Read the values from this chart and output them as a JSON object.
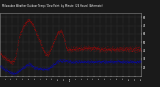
{
  "title": "Milwaukee Weather Outdoor Temp / Dew Point  by Minute  (24 Hours) (Alternate)",
  "bg_color": "#1a1a1a",
  "plot_bg_color": "#1a1a1a",
  "grid_color": "#555555",
  "temp_color": "#ff0000",
  "dew_color": "#0000ff",
  "ylim": [
    10,
    85
  ],
  "xlim": [
    0,
    1440
  ],
  "ytick_labels": [
    "80",
    "70",
    "60",
    "50",
    "40",
    "30",
    "20"
  ],
  "ytick_values": [
    80,
    70,
    60,
    50,
    40,
    30,
    20
  ],
  "hour_labels": [
    "12a",
    "1",
    "2",
    "3",
    "4",
    "5",
    "6",
    "7",
    "8",
    "9",
    "10",
    "11",
    "12p",
    "1",
    "2",
    "3",
    "4",
    "5",
    "6",
    "7",
    "8",
    "9",
    "10",
    "11",
    "12"
  ],
  "temp_data": [
    38,
    37,
    37,
    36,
    36,
    35,
    35,
    34,
    34,
    33,
    33,
    33,
    32,
    32,
    31,
    31,
    31,
    30,
    30,
    30,
    29,
    29,
    29,
    29,
    28,
    28,
    28,
    28,
    28,
    27,
    27,
    27,
    27,
    27,
    27,
    27,
    27,
    27,
    28,
    28,
    29,
    30,
    31,
    33,
    35,
    37,
    39,
    41,
    43,
    46,
    48,
    50,
    52,
    54,
    56,
    57,
    59,
    60,
    62,
    63,
    64,
    65,
    66,
    67,
    68,
    69,
    70,
    70,
    71,
    72,
    72,
    73,
    73,
    74,
    74,
    75,
    75,
    75,
    76,
    76,
    76,
    76,
    76,
    76,
    76,
    75,
    75,
    75,
    74,
    74,
    73,
    72,
    72,
    71,
    70,
    69,
    68,
    67,
    66,
    65,
    64,
    63,
    62,
    61,
    60,
    59,
    58,
    57,
    56,
    55,
    54,
    53,
    52,
    51,
    50,
    49,
    48,
    47,
    46,
    45,
    44,
    43,
    42,
    41,
    40,
    39,
    38,
    38,
    37,
    37,
    37,
    36,
    36,
    36,
    36,
    36,
    37,
    37,
    38,
    38,
    39,
    40,
    41,
    42,
    43,
    44,
    45,
    46,
    47,
    48,
    49,
    50,
    51,
    52,
    53,
    54,
    55,
    56,
    57,
    58,
    59,
    60,
    60,
    61,
    62,
    62,
    63,
    63,
    63,
    63,
    63,
    63,
    63,
    63,
    62,
    62,
    61,
    60,
    59,
    58,
    56,
    55,
    53,
    51,
    49,
    47,
    46,
    45,
    44,
    43,
    42,
    42,
    41,
    41,
    41,
    41,
    41,
    41,
    42,
    42,
    42,
    42,
    42,
    42,
    42,
    42,
    42,
    42,
    42,
    42,
    42,
    42,
    42,
    42,
    42,
    43,
    43,
    43,
    43,
    43,
    43,
    43,
    43,
    43,
    43,
    43,
    43,
    43,
    43,
    43,
    43,
    43,
    43,
    43,
    43,
    43,
    43,
    43,
    43,
    43,
    43,
    43,
    43,
    43,
    43,
    43,
    43,
    43,
    43,
    43,
    43,
    43,
    43,
    43,
    43,
    43,
    43,
    43,
    43,
    43,
    43,
    43,
    43,
    43,
    43,
    43,
    43,
    43,
    43,
    43,
    43,
    43,
    43,
    43,
    43,
    43,
    43,
    43,
    43,
    43,
    43,
    42,
    42,
    42,
    42,
    42,
    42,
    42,
    42,
    42,
    42,
    42,
    42,
    42,
    42,
    42,
    42,
    42,
    42,
    42,
    42,
    42,
    42,
    42,
    42,
    42,
    42,
    42,
    42,
    42,
    42,
    42,
    42,
    42,
    42,
    42,
    42,
    42,
    42,
    42,
    42,
    42,
    42,
    42,
    42,
    42,
    42,
    42,
    42,
    42,
    42,
    42,
    42,
    42,
    42,
    42,
    42,
    42,
    42,
    42,
    42,
    42,
    42,
    42,
    42,
    42,
    42,
    42,
    42,
    42,
    42,
    42,
    42,
    42,
    42,
    42,
    42,
    42,
    42,
    42,
    42,
    42,
    42,
    42,
    42,
    42,
    42,
    42,
    42,
    42,
    42,
    42,
    42,
    42,
    42,
    42,
    42,
    42,
    42,
    42,
    42,
    42,
    42,
    42,
    42,
    42,
    42,
    42,
    42,
    42,
    42,
    42,
    42,
    42,
    42,
    42,
    42,
    42,
    42,
    42
  ],
  "dew_data": [
    22,
    22,
    21,
    21,
    20,
    20,
    20,
    19,
    19,
    19,
    18,
    18,
    18,
    18,
    17,
    17,
    17,
    17,
    16,
    16,
    16,
    16,
    16,
    15,
    15,
    15,
    15,
    14,
    14,
    14,
    14,
    14,
    14,
    13,
    13,
    13,
    13,
    13,
    13,
    13,
    13,
    13,
    13,
    13,
    14,
    14,
    14,
    14,
    15,
    15,
    15,
    15,
    16,
    16,
    16,
    17,
    17,
    17,
    18,
    18,
    18,
    19,
    19,
    19,
    20,
    20,
    20,
    21,
    21,
    21,
    21,
    22,
    22,
    22,
    22,
    23,
    23,
    23,
    23,
    23,
    24,
    24,
    24,
    24,
    24,
    24,
    23,
    23,
    23,
    23,
    22,
    22,
    22,
    21,
    21,
    21,
    20,
    20,
    20,
    20,
    20,
    20,
    19,
    19,
    19,
    19,
    19,
    19,
    19,
    19,
    19,
    19,
    19,
    18,
    18,
    18,
    18,
    18,
    18,
    18,
    18,
    18,
    18,
    18,
    18,
    18,
    18,
    18,
    18,
    18,
    18,
    18,
    18,
    18,
    18,
    18,
    18,
    19,
    19,
    19,
    20,
    20,
    20,
    21,
    21,
    21,
    22,
    22,
    22,
    23,
    23,
    23,
    24,
    24,
    24,
    25,
    25,
    25,
    26,
    26,
    26,
    27,
    27,
    27,
    28,
    28,
    28,
    28,
    28,
    28,
    28,
    28,
    28,
    28,
    28,
    28,
    28,
    28,
    28,
    28,
    28,
    28,
    28,
    28,
    28,
    28,
    28,
    28,
    28,
    28,
    28,
    27,
    27,
    27,
    27,
    27,
    27,
    27,
    27,
    27,
    27,
    27,
    27,
    27,
    27,
    27,
    27,
    27,
    27,
    27,
    27,
    27,
    27,
    27,
    27,
    27,
    27,
    27,
    27,
    27,
    27,
    27,
    27,
    27,
    27,
    27,
    27,
    27,
    27,
    27,
    27,
    27,
    27,
    27,
    27,
    27,
    27,
    27,
    27,
    27,
    27,
    27,
    27,
    27,
    27,
    27,
    27,
    27,
    27,
    27,
    27,
    27,
    27,
    27,
    27,
    27,
    27,
    27,
    27,
    27,
    27,
    27,
    27,
    27,
    27,
    27,
    27,
    27,
    27,
    27,
    27,
    27,
    27,
    27,
    27,
    27,
    27,
    27,
    27,
    27,
    27,
    27,
    27,
    27,
    27,
    27,
    27,
    27,
    27,
    27,
    27,
    27,
    27,
    27,
    27,
    27,
    27,
    27,
    27,
    27,
    27,
    27,
    27,
    27,
    27,
    27,
    27,
    27,
    27,
    27,
    27,
    27,
    27,
    27,
    27,
    27,
    27,
    27,
    27,
    27,
    27,
    27,
    27,
    27,
    27,
    27,
    27,
    27,
    27,
    27,
    27,
    27,
    27,
    27,
    27,
    27,
    27,
    27,
    27,
    27,
    27,
    27,
    27,
    27,
    27,
    27,
    27,
    27,
    27,
    27,
    27,
    27,
    27,
    27,
    27,
    27,
    27,
    27,
    27,
    27,
    27,
    27,
    27,
    27,
    27,
    27,
    27,
    27,
    27,
    27,
    27,
    27,
    27,
    27,
    27,
    27,
    27,
    27,
    27,
    27,
    27,
    27,
    27,
    27,
    27,
    27,
    27,
    27,
    27,
    27,
    27,
    27,
    27,
    27,
    27,
    27,
    27,
    27,
    27,
    27
  ]
}
